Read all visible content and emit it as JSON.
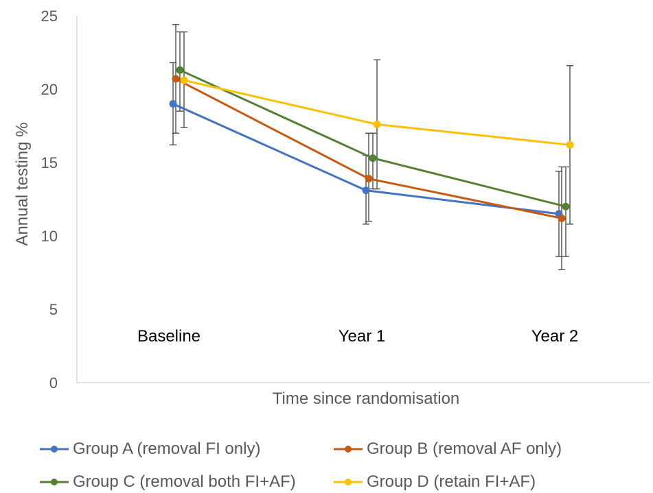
{
  "chart_data": {
    "type": "line",
    "title": "",
    "xlabel": "Time since randomisation",
    "ylabel": "Annual testing %",
    "categories": [
      "Baseline",
      "Year 1",
      "Year 2"
    ],
    "ylim": [
      0,
      25
    ],
    "yticks": [
      "0",
      "5",
      "10",
      "15",
      "20",
      "25"
    ],
    "grid": false,
    "legend_position": "bottom",
    "series": [
      {
        "name": "Group A (removal FI only)",
        "color": "#4472C4",
        "values": [
          19.0,
          13.1,
          11.5
        ],
        "error_low": [
          16.2,
          10.8,
          8.6
        ],
        "error_high": [
          21.8,
          15.5,
          14.4
        ]
      },
      {
        "name": "Group B (removal AF only)",
        "color": "#C55A11",
        "values": [
          20.7,
          13.9,
          11.2
        ],
        "error_low": [
          17.0,
          11.0,
          7.7
        ],
        "error_high": [
          24.4,
          17.0,
          14.7
        ]
      },
      {
        "name": "Group C (removal both FI+AF)",
        "color": "#548235",
        "values": [
          21.3,
          15.3,
          12.0
        ],
        "error_low": [
          18.5,
          13.2,
          8.6
        ],
        "error_high": [
          23.9,
          17.0,
          14.7
        ]
      },
      {
        "name": "Group D (retain FI+AF)",
        "color": "#FFC000",
        "values": [
          20.6,
          17.6,
          16.2
        ],
        "error_low": [
          17.4,
          13.2,
          10.8
        ],
        "error_high": [
          23.9,
          22.0,
          21.6
        ]
      }
    ]
  }
}
